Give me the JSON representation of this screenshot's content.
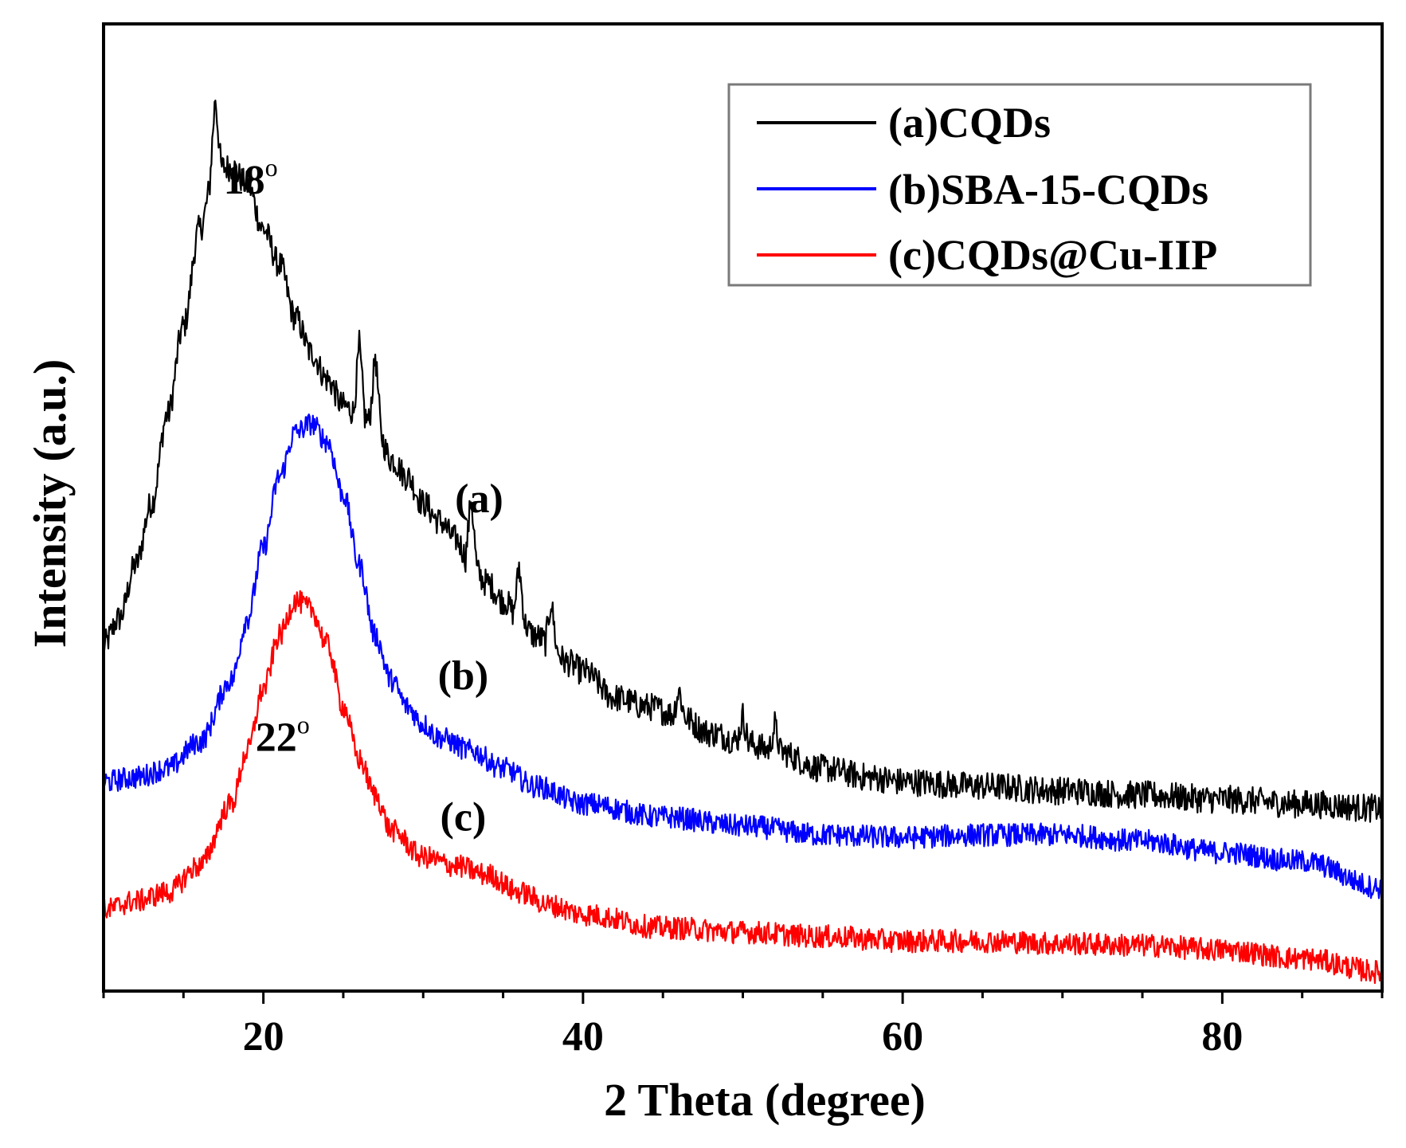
{
  "chart_data": {
    "type": "line",
    "title": "",
    "xlabel": "2 Theta (degree)",
    "ylabel": "Intensity (a.u.)",
    "xlim": [
      10,
      90
    ],
    "ylim": [
      0,
      100
    ],
    "x_ticks": [
      20,
      40,
      60,
      80
    ],
    "x_tick_labels": [
      "20",
      "40",
      "60",
      "80"
    ],
    "grid": false,
    "legend_position": "top-right",
    "series": [
      {
        "name": "(a)CQDs",
        "label": "(a)",
        "color": "#000000",
        "noise": 1.6,
        "points": [
          [
            10,
            37
          ],
          [
            11,
            40
          ],
          [
            12,
            46
          ],
          [
            13,
            53
          ],
          [
            14,
            63
          ],
          [
            15,
            73
          ],
          [
            16,
            84
          ],
          [
            17,
            91
          ],
          [
            18,
            91
          ],
          [
            19,
            89
          ],
          [
            20,
            84
          ],
          [
            21,
            80
          ],
          [
            22,
            74
          ],
          [
            23,
            70
          ],
          [
            24,
            67
          ],
          [
            25,
            64
          ],
          [
            26,
            63
          ],
          [
            27,
            62
          ],
          [
            28,
            58
          ],
          [
            29,
            56
          ],
          [
            30,
            53
          ],
          [
            31,
            51
          ],
          [
            32,
            49
          ],
          [
            33,
            46
          ],
          [
            34,
            44
          ],
          [
            35,
            42
          ],
          [
            36,
            40
          ],
          [
            37,
            38
          ],
          [
            38,
            37
          ],
          [
            39,
            35
          ],
          [
            40,
            34
          ],
          [
            42,
            31
          ],
          [
            44,
            30
          ],
          [
            46,
            29
          ],
          [
            48,
            27
          ],
          [
            50,
            26
          ],
          [
            52,
            25
          ],
          [
            55,
            23
          ],
          [
            58,
            22
          ],
          [
            60,
            21.5
          ],
          [
            65,
            21
          ],
          [
            70,
            20.5
          ],
          [
            75,
            20
          ],
          [
            80,
            19.5
          ],
          [
            85,
            19
          ],
          [
            90,
            18.5
          ]
        ],
        "spikes": [
          [
            17,
            8
          ],
          [
            26,
            8
          ],
          [
            27,
            8
          ],
          [
            33,
            8
          ],
          [
            36,
            6
          ],
          [
            38,
            5
          ],
          [
            46,
            3
          ],
          [
            50,
            3
          ],
          [
            52,
            3
          ]
        ]
      },
      {
        "name": "(b)SBA-15-CQDs",
        "label": "(b)",
        "color": "#0000ff",
        "noise": 1.3,
        "points": [
          [
            10,
            21.5
          ],
          [
            12,
            22
          ],
          [
            14,
            23
          ],
          [
            16,
            26
          ],
          [
            18,
            33
          ],
          [
            19,
            40
          ],
          [
            20,
            48
          ],
          [
            21,
            56
          ],
          [
            22,
            61
          ],
          [
            23,
            62
          ],
          [
            24,
            60
          ],
          [
            25,
            54
          ],
          [
            26,
            46
          ],
          [
            27,
            38
          ],
          [
            28,
            33
          ],
          [
            29,
            30
          ],
          [
            30,
            28
          ],
          [
            31,
            26.5
          ],
          [
            33,
            25
          ],
          [
            35,
            23
          ],
          [
            37,
            21
          ],
          [
            40,
            19
          ],
          [
            45,
            17.5
          ],
          [
            50,
            16.5
          ],
          [
            55,
            15.5
          ],
          [
            60,
            15.2
          ],
          [
            65,
            15.5
          ],
          [
            70,
            15.5
          ],
          [
            75,
            14.8
          ],
          [
            80,
            13.5
          ],
          [
            85,
            12.5
          ],
          [
            90,
            9.5
          ]
        ],
        "spikes": []
      },
      {
        "name": "(c)CQDs@Cu-IIP",
        "label": "(c)",
        "color": "#ff0000",
        "noise": 1.3,
        "points": [
          [
            10,
            7
          ],
          [
            12,
            8
          ],
          [
            14,
            9
          ],
          [
            16,
            12
          ],
          [
            18,
            19
          ],
          [
            19,
            25
          ],
          [
            20,
            32
          ],
          [
            21,
            38
          ],
          [
            22,
            42
          ],
          [
            23,
            41
          ],
          [
            24,
            37
          ],
          [
            25,
            30
          ],
          [
            26,
            24
          ],
          [
            27,
            20
          ],
          [
            28,
            16
          ],
          [
            30,
            13
          ],
          [
            32,
            12
          ],
          [
            34,
            11
          ],
          [
            36,
            9
          ],
          [
            38,
            7.5
          ],
          [
            40,
            6.5
          ],
          [
            45,
            5
          ],
          [
            50,
            4.5
          ],
          [
            55,
            4
          ],
          [
            60,
            3.5
          ],
          [
            65,
            3.5
          ],
          [
            70,
            3.2
          ],
          [
            75,
            3
          ],
          [
            80,
            2.5
          ],
          [
            85,
            1.5
          ],
          [
            90,
            0
          ]
        ],
        "spikes": []
      }
    ],
    "annotations": [
      {
        "text": "18",
        "sup": "o",
        "x": 19.2,
        "y": 88
      },
      {
        "text": "22",
        "sup": "o",
        "x": 21.2,
        "y": 25
      },
      {
        "text": "(a)",
        "x": 33.5,
        "y": 52
      },
      {
        "text": "(b)",
        "x": 32.5,
        "y": 32
      },
      {
        "text": "(c)",
        "x": 32.5,
        "y": 16
      }
    ]
  }
}
